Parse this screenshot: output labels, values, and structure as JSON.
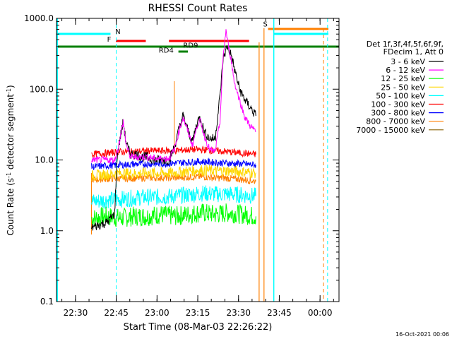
{
  "chart_data": {
    "type": "line",
    "title": "RHESSI Count Rates",
    "xlabel": "Start Time (08-Mar-03 22:26:22)",
    "ylabel_parts": [
      "Count Rate (s",
      "-1",
      " detector segment",
      "-1",
      ")"
    ],
    "y_scale": "log",
    "ylim": [
      0.1,
      1000
    ],
    "y_ticks": [
      {
        "value": 0.1,
        "label": "0.1"
      },
      {
        "value": 1,
        "label": "1.0"
      },
      {
        "value": 10,
        "label": "10.0"
      },
      {
        "value": 100,
        "label": "100.0"
      },
      {
        "value": 1000,
        "label": "1000.0"
      }
    ],
    "x_unit": "minutes after 22:26:22",
    "xlim": [
      -3.37,
      100.6
    ],
    "x_ticks": [
      {
        "value": 3.63,
        "label": "22:30"
      },
      {
        "value": 18.63,
        "label": "22:45"
      },
      {
        "value": 33.63,
        "label": "23:00"
      },
      {
        "value": 48.63,
        "label": "23:15"
      },
      {
        "value": 63.63,
        "label": "23:30"
      },
      {
        "value": 78.63,
        "label": "23:45"
      },
      {
        "value": 93.63,
        "label": "00:00"
      }
    ],
    "legend": {
      "header": [
        "Det 1f,3f,4f,5f,6f,9f,",
        "FDecim 1, Att 0"
      ],
      "placement": "right"
    },
    "series": [
      {
        "name": "3 - 6 keV",
        "color": "#000000",
        "x": [
          9.5,
          12,
          15,
          18,
          19,
          20,
          21.2,
          22,
          23,
          24,
          26,
          28,
          30,
          33,
          36,
          38,
          40,
          42,
          43.2,
          45,
          46.7,
          47.5,
          48.5,
          49.5,
          51,
          53,
          55,
          56.8,
          58,
          59.5,
          61,
          62,
          64,
          66,
          68,
          70
        ],
        "y": [
          1.1,
          1.2,
          1.3,
          1.7,
          12,
          20,
          35,
          20,
          14,
          12,
          12,
          11,
          11,
          10,
          10,
          10,
          15,
          30,
          42,
          26,
          18,
          25,
          35,
          40,
          25,
          20,
          20,
          80,
          280,
          400,
          300,
          200,
          100,
          70,
          55,
          42
        ]
      },
      {
        "name": "6 - 12 keV",
        "color": "#ff00ff",
        "x": [
          9.5,
          12,
          15,
          18,
          19,
          20,
          21.2,
          22,
          23,
          24,
          26,
          28,
          30,
          33,
          36,
          38,
          40,
          42,
          43.2,
          45,
          46.7,
          47.5,
          48.5,
          49.5,
          51,
          53,
          55,
          56.8,
          58,
          59,
          59.5,
          61,
          62,
          64,
          66,
          68,
          70
        ],
        "y": [
          10,
          10,
          10,
          10,
          13,
          20,
          35,
          19,
          13,
          11,
          11,
          11,
          11,
          10.5,
          10.5,
          10.5,
          14,
          28,
          40,
          25,
          16,
          22,
          32,
          36,
          22,
          14,
          13,
          35,
          300,
          680,
          500,
          250,
          130,
          70,
          40,
          30,
          25
        ]
      },
      {
        "name": "12 - 25 keV",
        "color": "#00ff00",
        "x": [
          9.5,
          15,
          20,
          25,
          30,
          35,
          40,
          45,
          50,
          55,
          60,
          65,
          70
        ],
        "y": [
          1.5,
          1.6,
          1.5,
          1.6,
          1.6,
          1.7,
          1.6,
          1.7,
          1.8,
          1.7,
          1.8,
          1.7,
          1.6
        ]
      },
      {
        "name": "25 - 50 keV",
        "color": "#ffd700",
        "x": [
          9.5,
          15,
          20,
          25,
          30,
          35,
          40,
          45,
          50,
          55,
          60,
          65,
          70
        ],
        "y": [
          6.0,
          6.2,
          6.5,
          6.4,
          6.6,
          6.5,
          6.6,
          7.0,
          7.2,
          7.0,
          7.0,
          6.8,
          6.6
        ]
      },
      {
        "name": "50 - 100 keV",
        "color": "#00ffff",
        "x": [
          9.5,
          15,
          20,
          25,
          30,
          35,
          40,
          45,
          50,
          55,
          60,
          65,
          70
        ],
        "y": [
          2.6,
          2.7,
          2.8,
          2.9,
          3.0,
          3.0,
          3.1,
          3.2,
          3.4,
          3.3,
          3.3,
          3.2,
          3.1
        ]
      },
      {
        "name": "100 - 300 keV",
        "color": "#ff0000",
        "x": [
          9.5,
          15,
          20,
          25,
          30,
          35,
          40,
          45,
          50,
          55,
          60,
          65,
          70
        ],
        "y": [
          12,
          12.5,
          13,
          13,
          13.5,
          13.5,
          13.5,
          14,
          14,
          13.5,
          13,
          12.5,
          12
        ]
      },
      {
        "name": "300 - 800 keV",
        "color": "#0000ff",
        "x": [
          9.5,
          15,
          20,
          25,
          30,
          35,
          40,
          45,
          50,
          55,
          60,
          65,
          70
        ],
        "y": [
          8.0,
          8.3,
          8.5,
          8.7,
          8.8,
          8.8,
          9.0,
          9.3,
          9.5,
          9.2,
          9.0,
          8.8,
          8.5
        ]
      },
      {
        "name": "800 - 7000 keV",
        "color": "#ff7f00",
        "x": [
          9.5,
          15,
          20,
          25,
          30,
          35,
          40,
          45,
          50,
          55,
          60,
          65,
          70
        ],
        "y": [
          5.3,
          5.4,
          5.5,
          5.5,
          5.6,
          5.6,
          5.6,
          5.7,
          5.8,
          5.6,
          5.5,
          5.3,
          5.0
        ]
      },
      {
        "name": "7000 - 15000 keV",
        "color": "#8b6508",
        "x": [],
        "y": []
      }
    ],
    "annotations": [
      {
        "label": "N",
        "color": "#00ffff",
        "x": 19.2,
        "y": 600
      },
      {
        "label": "F",
        "color": "#ff0000",
        "x": 16,
        "y": 470
      },
      {
        "label": "RD9",
        "color": "#008000",
        "x": 46,
        "y": 385
      },
      {
        "label": "RD4",
        "color": "#008000",
        "x": 37,
        "y": 330
      },
      {
        "label": "S",
        "color": "#ff7f00",
        "x": 73.5,
        "y": 770
      }
    ],
    "footer_date": "16-Oct-2021 00:06"
  }
}
